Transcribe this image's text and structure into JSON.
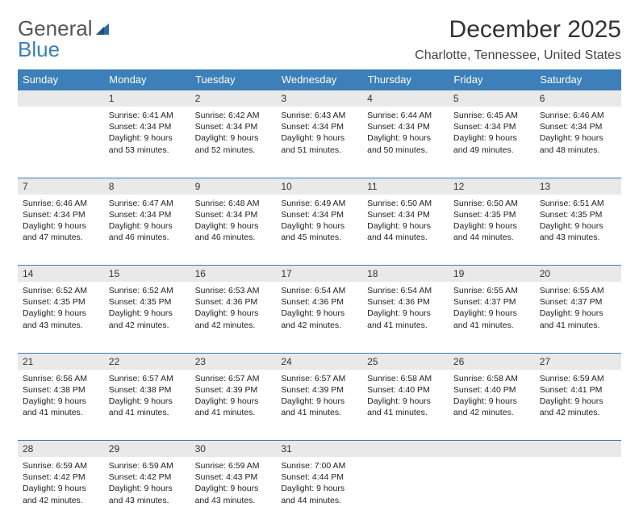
{
  "logo": {
    "text1": "General",
    "text2": "Blue"
  },
  "title": "December 2025",
  "subtitle": "Charlotte, Tennessee, United States",
  "colors": {
    "header_bg": "#3d7fb8",
    "header_text": "#ffffff",
    "daynum_bg": "#e9e9e9",
    "rule": "#3d7fb8",
    "page_bg": "#ffffff",
    "body_text": "#222222"
  },
  "typography": {
    "title_fontsize": 30,
    "subtitle_fontsize": 16,
    "dayheader_fontsize": 13,
    "daynum_fontsize": 12,
    "cell_fontsize": 10.5
  },
  "day_headers": [
    "Sunday",
    "Monday",
    "Tuesday",
    "Wednesday",
    "Thursday",
    "Friday",
    "Saturday"
  ],
  "weeks": [
    [
      {
        "n": "",
        "sunrise": "",
        "sunset": "",
        "daylight": ""
      },
      {
        "n": "1",
        "sunrise": "Sunrise: 6:41 AM",
        "sunset": "Sunset: 4:34 PM",
        "daylight": "Daylight: 9 hours and 53 minutes."
      },
      {
        "n": "2",
        "sunrise": "Sunrise: 6:42 AM",
        "sunset": "Sunset: 4:34 PM",
        "daylight": "Daylight: 9 hours and 52 minutes."
      },
      {
        "n": "3",
        "sunrise": "Sunrise: 6:43 AM",
        "sunset": "Sunset: 4:34 PM",
        "daylight": "Daylight: 9 hours and 51 minutes."
      },
      {
        "n": "4",
        "sunrise": "Sunrise: 6:44 AM",
        "sunset": "Sunset: 4:34 PM",
        "daylight": "Daylight: 9 hours and 50 minutes."
      },
      {
        "n": "5",
        "sunrise": "Sunrise: 6:45 AM",
        "sunset": "Sunset: 4:34 PM",
        "daylight": "Daylight: 9 hours and 49 minutes."
      },
      {
        "n": "6",
        "sunrise": "Sunrise: 6:46 AM",
        "sunset": "Sunset: 4:34 PM",
        "daylight": "Daylight: 9 hours and 48 minutes."
      }
    ],
    [
      {
        "n": "7",
        "sunrise": "Sunrise: 6:46 AM",
        "sunset": "Sunset: 4:34 PM",
        "daylight": "Daylight: 9 hours and 47 minutes."
      },
      {
        "n": "8",
        "sunrise": "Sunrise: 6:47 AM",
        "sunset": "Sunset: 4:34 PM",
        "daylight": "Daylight: 9 hours and 46 minutes."
      },
      {
        "n": "9",
        "sunrise": "Sunrise: 6:48 AM",
        "sunset": "Sunset: 4:34 PM",
        "daylight": "Daylight: 9 hours and 46 minutes."
      },
      {
        "n": "10",
        "sunrise": "Sunrise: 6:49 AM",
        "sunset": "Sunset: 4:34 PM",
        "daylight": "Daylight: 9 hours and 45 minutes."
      },
      {
        "n": "11",
        "sunrise": "Sunrise: 6:50 AM",
        "sunset": "Sunset: 4:34 PM",
        "daylight": "Daylight: 9 hours and 44 minutes."
      },
      {
        "n": "12",
        "sunrise": "Sunrise: 6:50 AM",
        "sunset": "Sunset: 4:35 PM",
        "daylight": "Daylight: 9 hours and 44 minutes."
      },
      {
        "n": "13",
        "sunrise": "Sunrise: 6:51 AM",
        "sunset": "Sunset: 4:35 PM",
        "daylight": "Daylight: 9 hours and 43 minutes."
      }
    ],
    [
      {
        "n": "14",
        "sunrise": "Sunrise: 6:52 AM",
        "sunset": "Sunset: 4:35 PM",
        "daylight": "Daylight: 9 hours and 43 minutes."
      },
      {
        "n": "15",
        "sunrise": "Sunrise: 6:52 AM",
        "sunset": "Sunset: 4:35 PM",
        "daylight": "Daylight: 9 hours and 42 minutes."
      },
      {
        "n": "16",
        "sunrise": "Sunrise: 6:53 AM",
        "sunset": "Sunset: 4:36 PM",
        "daylight": "Daylight: 9 hours and 42 minutes."
      },
      {
        "n": "17",
        "sunrise": "Sunrise: 6:54 AM",
        "sunset": "Sunset: 4:36 PM",
        "daylight": "Daylight: 9 hours and 42 minutes."
      },
      {
        "n": "18",
        "sunrise": "Sunrise: 6:54 AM",
        "sunset": "Sunset: 4:36 PM",
        "daylight": "Daylight: 9 hours and 41 minutes."
      },
      {
        "n": "19",
        "sunrise": "Sunrise: 6:55 AM",
        "sunset": "Sunset: 4:37 PM",
        "daylight": "Daylight: 9 hours and 41 minutes."
      },
      {
        "n": "20",
        "sunrise": "Sunrise: 6:55 AM",
        "sunset": "Sunset: 4:37 PM",
        "daylight": "Daylight: 9 hours and 41 minutes."
      }
    ],
    [
      {
        "n": "21",
        "sunrise": "Sunrise: 6:56 AM",
        "sunset": "Sunset: 4:38 PM",
        "daylight": "Daylight: 9 hours and 41 minutes."
      },
      {
        "n": "22",
        "sunrise": "Sunrise: 6:57 AM",
        "sunset": "Sunset: 4:38 PM",
        "daylight": "Daylight: 9 hours and 41 minutes."
      },
      {
        "n": "23",
        "sunrise": "Sunrise: 6:57 AM",
        "sunset": "Sunset: 4:39 PM",
        "daylight": "Daylight: 9 hours and 41 minutes."
      },
      {
        "n": "24",
        "sunrise": "Sunrise: 6:57 AM",
        "sunset": "Sunset: 4:39 PM",
        "daylight": "Daylight: 9 hours and 41 minutes."
      },
      {
        "n": "25",
        "sunrise": "Sunrise: 6:58 AM",
        "sunset": "Sunset: 4:40 PM",
        "daylight": "Daylight: 9 hours and 41 minutes."
      },
      {
        "n": "26",
        "sunrise": "Sunrise: 6:58 AM",
        "sunset": "Sunset: 4:40 PM",
        "daylight": "Daylight: 9 hours and 42 minutes."
      },
      {
        "n": "27",
        "sunrise": "Sunrise: 6:59 AM",
        "sunset": "Sunset: 4:41 PM",
        "daylight": "Daylight: 9 hours and 42 minutes."
      }
    ],
    [
      {
        "n": "28",
        "sunrise": "Sunrise: 6:59 AM",
        "sunset": "Sunset: 4:42 PM",
        "daylight": "Daylight: 9 hours and 42 minutes."
      },
      {
        "n": "29",
        "sunrise": "Sunrise: 6:59 AM",
        "sunset": "Sunset: 4:42 PM",
        "daylight": "Daylight: 9 hours and 43 minutes."
      },
      {
        "n": "30",
        "sunrise": "Sunrise: 6:59 AM",
        "sunset": "Sunset: 4:43 PM",
        "daylight": "Daylight: 9 hours and 43 minutes."
      },
      {
        "n": "31",
        "sunrise": "Sunrise: 7:00 AM",
        "sunset": "Sunset: 4:44 PM",
        "daylight": "Daylight: 9 hours and 44 minutes."
      },
      {
        "n": "",
        "sunrise": "",
        "sunset": "",
        "daylight": ""
      },
      {
        "n": "",
        "sunrise": "",
        "sunset": "",
        "daylight": ""
      },
      {
        "n": "",
        "sunrise": "",
        "sunset": "",
        "daylight": ""
      }
    ]
  ]
}
